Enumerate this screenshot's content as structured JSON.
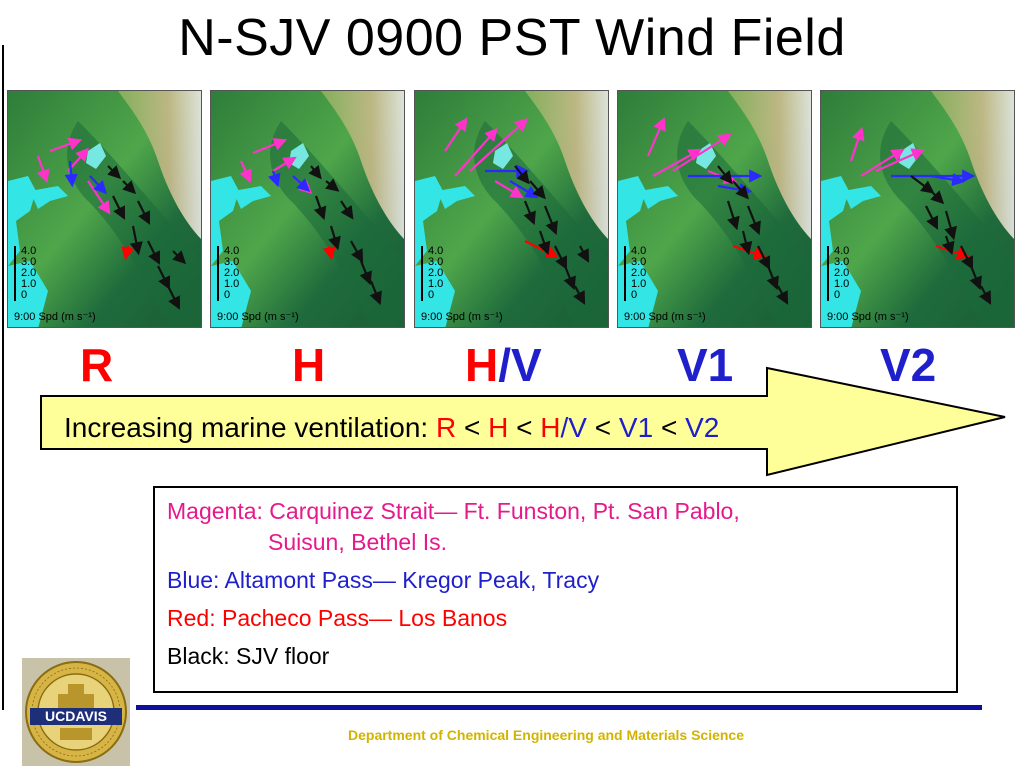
{
  "title": "N-SJV 0900 PST Wind Field",
  "panels": [
    {
      "caption": "9:00 Spd (m s⁻¹)"
    },
    {
      "caption": "9:00 Spd (m s⁻¹)"
    },
    {
      "caption": "9:00 Spd (m s⁻¹)"
    },
    {
      "caption": "9:00 Spd (m s⁻¹)"
    },
    {
      "caption": "9:00 Spd (m s⁻¹)"
    }
  ],
  "scale_ticks": [
    "4.0",
    "3.0",
    "2.0",
    "1.0",
    "0"
  ],
  "regime_labels": {
    "r": "R",
    "h": "H",
    "hv_h": "H",
    "hv_slash": "/",
    "hv_v": "V",
    "v1": "V1",
    "v2": "V2"
  },
  "arrow_text": {
    "prefix": "Increasing marine ventilation: ",
    "r": "R",
    "lt1": " < ",
    "h": "H",
    "lt2": " < ",
    "hv_h": "H",
    "hv_rest": "/V",
    "lt3": " < ",
    "v1": "V1",
    "lt4": " < ",
    "v2": "V2"
  },
  "legend": {
    "magenta_line1": "Magenta: Carquinez Strait— Ft. Funston, Pt. San Pablo,",
    "magenta_line2": "Suisun, Bethel Is.",
    "blue": "Blue: Altamont Pass— Kregor Peak, Tracy",
    "red": "Red: Pacheco Pass— Los Banos",
    "black": "Black: SJV floor"
  },
  "logo": {
    "text": "UCDAVIS",
    "ring_text": "THE UNIVERSITY OF CALIFORNIA"
  },
  "footer": "Department of Chemical Engineering and Materials Science",
  "colors": {
    "red": "#ff0000",
    "blue": "#1f1fcc",
    "magenta": "#e6198c",
    "arrow_fill": "#ffff99",
    "rule": "#0f0f9e",
    "footer": "#d2b400"
  }
}
